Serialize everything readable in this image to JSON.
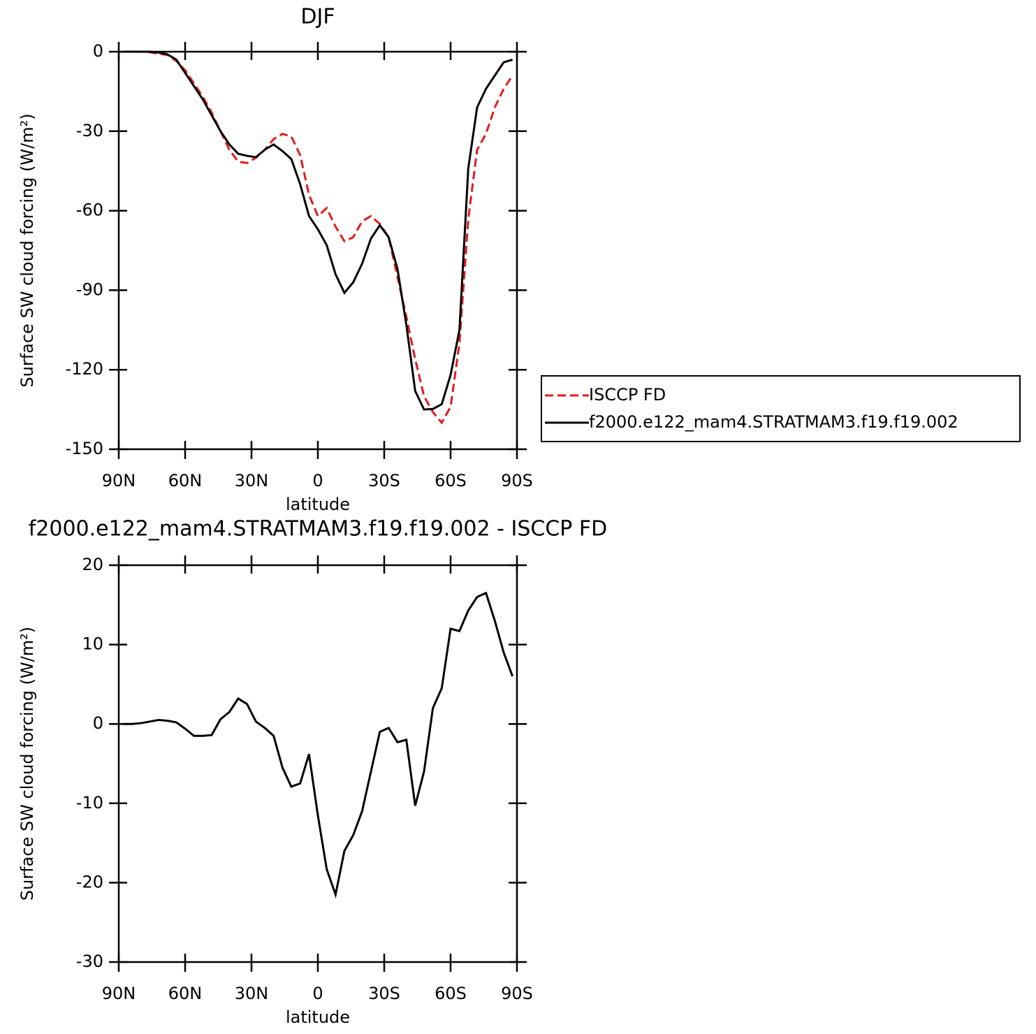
{
  "chart_data": [
    {
      "type": "line",
      "title": "DJF",
      "xlabel": "latitude",
      "ylabel": "Surface SW cloud forcing (W/m²)",
      "xlim": [
        90,
        -90
      ],
      "xticks": [
        {
          "value": 90,
          "label": "90N"
        },
        {
          "value": 60,
          "label": "60N"
        },
        {
          "value": 30,
          "label": "30N"
        },
        0,
        {
          "value": -30,
          "label": "30S"
        },
        {
          "value": -60,
          "label": "60S"
        },
        {
          "value": -90,
          "label": "90S"
        }
      ],
      "ylim": [
        -150,
        0
      ],
      "yticks": [
        0,
        -30,
        -60,
        -90,
        -120,
        -150
      ],
      "legend": "right",
      "x": [
        88,
        84,
        80,
        76,
        72,
        68,
        64,
        60,
        56,
        52,
        48,
        44,
        40,
        36,
        32,
        28,
        24,
        20,
        16,
        12,
        8,
        4,
        0,
        -4,
        -8,
        -12,
        -16,
        -20,
        -24,
        -28,
        -32,
        -36,
        -40,
        -44,
        -48,
        -52,
        -56,
        -60,
        -64,
        -68,
        -72,
        -76,
        -80,
        -84,
        -88
      ],
      "series": [
        {
          "name": "ISCCP FD",
          "color": "#e41a1c",
          "dash": true,
          "values": [
            0,
            0,
            0,
            -0.2,
            -0.8,
            -1.2,
            -3.5,
            -7,
            -12,
            -17,
            -23,
            -30,
            -37,
            -41.5,
            -42,
            -40,
            -37,
            -33,
            -31,
            -32,
            -39,
            -54,
            -62,
            -59,
            -66,
            -71.5,
            -70,
            -64,
            -62,
            -65,
            -70,
            -85,
            -100,
            -116,
            -130,
            -136,
            -140,
            -134,
            -110,
            -63,
            -37,
            -31,
            -21,
            -14,
            -9
          ]
        },
        {
          "name": "f2000.e122_mam4.STRATMAM3.f19.f19.002",
          "color": "#000000",
          "dash": false,
          "values": [
            0,
            0,
            0,
            0,
            -0.3,
            -1,
            -3,
            -8,
            -13,
            -18,
            -24,
            -30,
            -35,
            -38.5,
            -39.3,
            -39.8,
            -37,
            -35,
            -37.5,
            -40.5,
            -50,
            -62,
            -67,
            -73,
            -84,
            -91,
            -87,
            -80,
            -70.5,
            -65.5,
            -70,
            -82,
            -103,
            -128,
            -135,
            -134.8,
            -133,
            -122,
            -105,
            -44,
            -21,
            -14,
            -9,
            -4,
            -3
          ]
        }
      ]
    },
    {
      "type": "line",
      "title": "f2000.e122_mam4.STRATMAM3.f19.f19.002 - ISCCP FD",
      "xlabel": "latitude",
      "ylabel": "Surface SW cloud forcing (W/m²)",
      "xlim": [
        90,
        -90
      ],
      "xticks": [
        {
          "value": 90,
          "label": "90N"
        },
        {
          "value": 60,
          "label": "60N"
        },
        {
          "value": 30,
          "label": "30N"
        },
        0,
        {
          "value": -30,
          "label": "30S"
        },
        {
          "value": -60,
          "label": "60S"
        },
        {
          "value": -90,
          "label": "90S"
        }
      ],
      "ylim": [
        -30,
        20
      ],
      "yticks": [
        20,
        10,
        0,
        -10,
        -20,
        -30
      ],
      "x": [
        88,
        84,
        80,
        76,
        72,
        68,
        64,
        60,
        56,
        52,
        48,
        44,
        40,
        36,
        32,
        28,
        24,
        20,
        16,
        12,
        8,
        4,
        0,
        -4,
        -8,
        -12,
        -16,
        -20,
        -24,
        -28,
        -32,
        -36,
        -40,
        -44,
        -48,
        -52,
        -56,
        -60,
        -64,
        -68,
        -72,
        -76,
        -80,
        -84,
        -88
      ],
      "series": [
        {
          "color": "#000000",
          "dash": false,
          "values": [
            0,
            0,
            0.1,
            0.3,
            0.5,
            0.4,
            0.2,
            -0.6,
            -1.5,
            -1.5,
            -1.4,
            0.6,
            1.5,
            3.2,
            2.5,
            0.3,
            -0.5,
            -1.5,
            -5.5,
            -7.9,
            -7.5,
            -3.8,
            -11.5,
            -18.3,
            -21.5,
            -16,
            -14,
            -11,
            -6,
            -1,
            -0.5,
            -2.3,
            -2,
            -10.3,
            -6,
            2,
            4.5,
            12,
            11.7,
            14.3,
            16,
            16.5,
            13,
            9,
            6
          ]
        }
      ]
    }
  ]
}
